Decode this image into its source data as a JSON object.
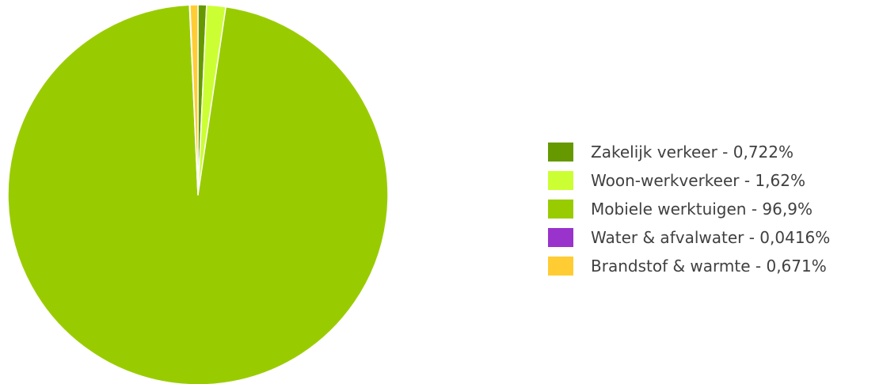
{
  "chart_data": {
    "type": "pie",
    "categories": [
      "Zakelijk verkeer",
      "Woon-werkverkeer",
      "Mobiele werktuigen",
      "Water & afvalwater",
      "Brandstof & warmte"
    ],
    "values": [
      0.722,
      1.62,
      96.9,
      0.0416,
      0.671
    ],
    "legend_labels": [
      "Zakelijk verkeer - 0,722%",
      "Woon-werkverkeer - 1,62%",
      "Mobiele werktuigen - 96,9%",
      "Water & afvalwater - 0,0416%",
      "Brandstof & warmte - 0,671%"
    ],
    "colors": [
      "#669900",
      "#ccff33",
      "#99cc00",
      "#9933cc",
      "#ffcc33"
    ],
    "start_angle_deg": 0,
    "direction": "clockwise",
    "legend_position": "right"
  }
}
